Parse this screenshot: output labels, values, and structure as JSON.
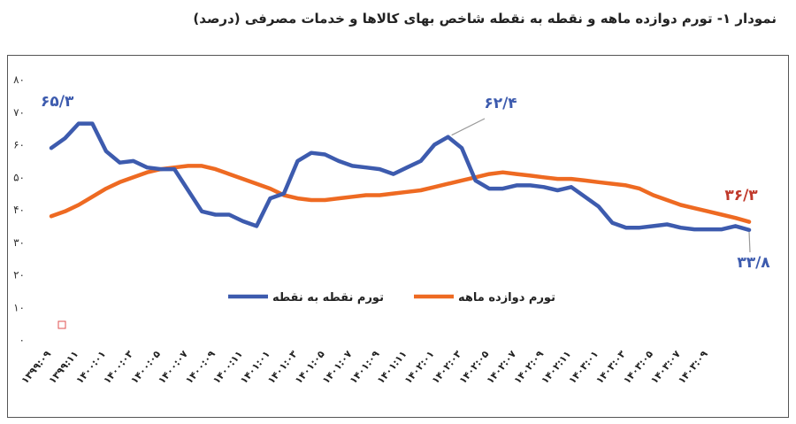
{
  "chart_data": {
    "type": "line",
    "title": "نمودار ۱- تورم دوازده ماهه و نقطه به نقطه شاخص بهای کالاها و خدمات مصرفی (درصد)",
    "xlabel": "",
    "ylabel": "",
    "ylim": [
      0,
      80
    ],
    "yticks": [
      "۰",
      "۱۰",
      "۲۰",
      "۳۰",
      "۴۰",
      "۵۰",
      "۶۰",
      "۷۰",
      "۸۰"
    ],
    "x_tick_labels": [
      "۱۳۹۹:۰۹",
      "۱۳۹۹:۱۱",
      "۱۴۰۰:۰۱",
      "۱۴۰۰:۰۳",
      "۱۴۰۰:۰۵",
      "۱۴۰۰:۰۷",
      "۱۴۰۰:۰۹",
      "۱۴۰۰:۱۱",
      "۱۴۰۱:۰۱",
      "۱۴۰۱:۰۳",
      "۱۴۰۱:۰۵",
      "۱۴۰۱:۰۷",
      "۱۴۰۱:۰۹",
      "۱۴۰۱:۱۱",
      "۱۴۰۲:۰۱",
      "۱۴۰۲:۰۳",
      "۱۴۰۲:۰۵",
      "۱۴۰۲:۰۷",
      "۱۴۰۲:۰۹",
      "۱۴۰۲:۱۱",
      "۱۴۰۳:۰۱",
      "۱۴۰۳:۰۳",
      "۱۴۰۳:۰۵",
      "۱۴۰۳:۰۷",
      "۱۴۰۳:۰۹"
    ],
    "x_labels_step": 2,
    "grid": false,
    "legend": "center",
    "series": [
      {
        "name": "تورم نقطه به نقطه",
        "color": "#3D5BAE",
        "values": [
          59,
          62,
          66.5,
          66.5,
          58,
          54.5,
          55,
          53,
          52.5,
          52.5,
          46,
          39.5,
          38.5,
          38.5,
          36.5,
          35,
          43.5,
          45,
          55,
          57.5,
          57,
          55,
          53.5,
          53,
          52.5,
          51,
          53,
          55,
          60,
          62.4,
          59,
          49,
          46.5,
          46.5,
          47.5,
          47.5,
          47,
          46,
          47,
          44,
          41,
          36,
          34.5,
          34.5,
          35,
          35.5,
          34.5,
          34,
          34,
          34,
          35,
          33.8
        ]
      },
      {
        "name": "تورم دوازده ماهه",
        "color": "#EE6A22",
        "values": [
          38,
          39.5,
          41.5,
          44,
          46.5,
          48.5,
          50,
          51.5,
          52.5,
          53,
          53.5,
          53.5,
          52.5,
          51,
          49.5,
          48,
          46.5,
          44.5,
          43.5,
          43,
          43,
          43.5,
          44,
          44.5,
          44.5,
          45,
          45.5,
          46,
          47,
          48,
          49,
          50,
          51,
          51.5,
          51,
          50.5,
          50,
          49.5,
          49.5,
          49,
          48.5,
          48,
          47.5,
          46.5,
          44.5,
          43,
          41.5,
          40.5,
          39.5,
          38.5,
          37.5,
          36.3
        ]
      }
    ],
    "annotations": [
      {
        "text": "۶۵/۳",
        "color": "#3D5BAE"
      },
      {
        "text": "۶۲/۴",
        "color": "#3D5BAE"
      },
      {
        "text": "۳۶/۳",
        "color": "#C0392B"
      },
      {
        "text": "۳۳/۸",
        "color": "#3D5BAE"
      }
    ]
  }
}
